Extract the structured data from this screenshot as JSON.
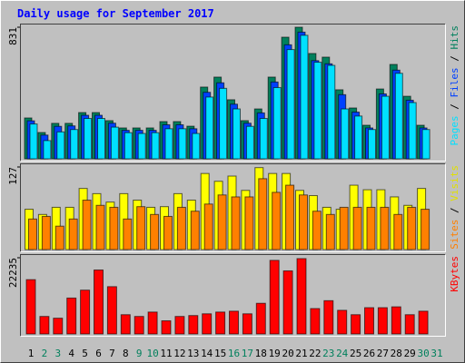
{
  "chart_data": [
    {
      "type": "bar",
      "title": "Daily usage for September 2017",
      "ylim": [
        0,
        831
      ],
      "yticks": [
        831
      ],
      "legend_separator": " / ",
      "series": [
        {
          "name": "Hits",
          "color": "#00805c",
          "values": [
            258,
            166,
            224,
            224,
            292,
            292,
            241,
            195,
            195,
            195,
            235,
            235,
            206,
            453,
            516,
            373,
            241,
            315,
            516,
            768,
            831,
            665,
            642,
            436,
            321,
            212,
            441,
            596,
            395,
            212,
            0
          ]
        },
        {
          "name": "Files",
          "color": "#0040ff",
          "values": [
            240,
            150,
            205,
            208,
            275,
            275,
            225,
            180,
            180,
            180,
            215,
            215,
            190,
            420,
            480,
            345,
            225,
            290,
            485,
            720,
            800,
            620,
            600,
            405,
            295,
            195,
            410,
            560,
            370,
            195,
            0
          ]
        },
        {
          "name": "Pages",
          "color": "#00e0ff",
          "values": [
            220,
            115,
            170,
            185,
            255,
            255,
            200,
            165,
            160,
            165,
            190,
            190,
            160,
            390,
            445,
            315,
            205,
            255,
            450,
            690,
            780,
            610,
            590,
            315,
            270,
            185,
            395,
            540,
            355,
            185,
            0
          ]
        }
      ]
    },
    {
      "type": "bar",
      "ylim": [
        0,
        127
      ],
      "yticks": [
        127
      ],
      "legend_separator": " / ",
      "series": [
        {
          "name": "Visits",
          "color": "#ffff00",
          "values": [
            62,
            54,
            65,
            65,
            94,
            86,
            73,
            86,
            76,
            65,
            66,
            86,
            76,
            117,
            105,
            113,
            91,
            126,
            117,
            117,
            91,
            83,
            65,
            62,
            99,
            92,
            92,
            81,
            68,
            94,
            0
          ]
        },
        {
          "name": "Sites",
          "color": "#ff8000",
          "values": [
            47,
            51,
            36,
            47,
            76,
            68,
            65,
            47,
            66,
            54,
            51,
            65,
            59,
            70,
            84,
            81,
            81,
            109,
            88,
            99,
            84,
            59,
            54,
            65,
            65,
            65,
            65,
            54,
            65,
            62,
            0
          ]
        }
      ]
    },
    {
      "type": "bar",
      "ylim": [
        0,
        22235
      ],
      "yticks": [
        22235
      ],
      "categories": [
        "1",
        "2",
        "3",
        "4",
        "5",
        "6",
        "7",
        "8",
        "9",
        "10",
        "11",
        "12",
        "13",
        "14",
        "15",
        "16",
        "17",
        "18",
        "19",
        "20",
        "21",
        "22",
        "23",
        "24",
        "25",
        "26",
        "27",
        "28",
        "29",
        "30",
        "31"
      ],
      "category_colors": [
        "#000000",
        "#00805c",
        "#00805c",
        "#000000",
        "#000000",
        "#000000",
        "#000000",
        "#000000",
        "#00805c",
        "#00805c",
        "#000000",
        "#000000",
        "#000000",
        "#000000",
        "#000000",
        "#00805c",
        "#00805c",
        "#000000",
        "#000000",
        "#000000",
        "#000000",
        "#000000",
        "#00805c",
        "#00805c",
        "#000000",
        "#000000",
        "#000000",
        "#000000",
        "#000000",
        "#00805c",
        "#00805c"
      ],
      "series": [
        {
          "name": "KBytes",
          "color": "#ff0000",
          "values": [
            15845,
            5110,
            4600,
            10480,
            12780,
            18660,
            13800,
            5620,
            5110,
            6390,
            3835,
            5110,
            5370,
            5880,
            6390,
            6645,
            5880,
            8945,
            21470,
            18400,
            21980,
            7410,
            9710,
            6900,
            5620,
            7670,
            7670,
            7920,
            5620,
            6645,
            0
          ]
        }
      ]
    }
  ]
}
